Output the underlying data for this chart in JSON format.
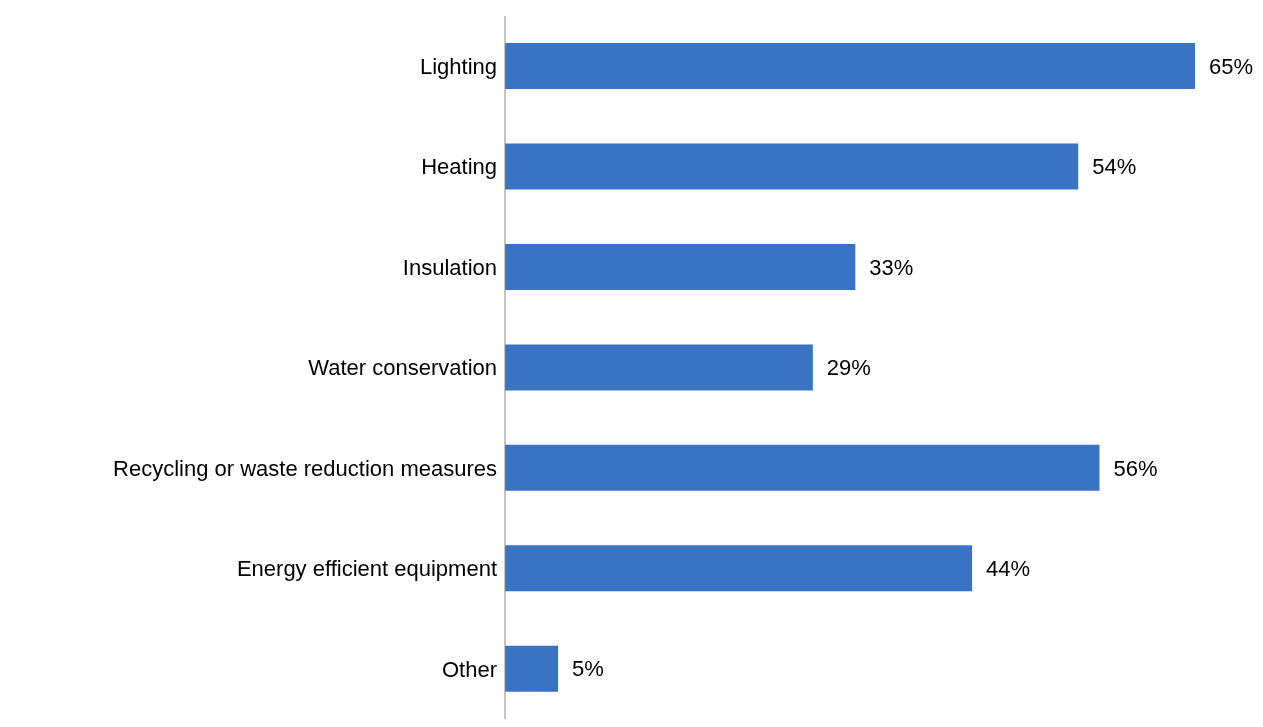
{
  "chart_data": {
    "type": "bar",
    "orientation": "horizontal",
    "categories": [
      "Lighting",
      "Heating",
      "Insulation",
      "Water conservation",
      "Recycling or waste reduction measures",
      "Energy efficient equipment",
      "Other"
    ],
    "values": [
      65,
      54,
      33,
      29,
      56,
      44,
      5
    ],
    "value_labels": [
      "65%",
      "54%",
      "33%",
      "29%",
      "56%",
      "44%",
      "5%"
    ],
    "color": "#3a73c4",
    "grid": false,
    "legend": false
  }
}
